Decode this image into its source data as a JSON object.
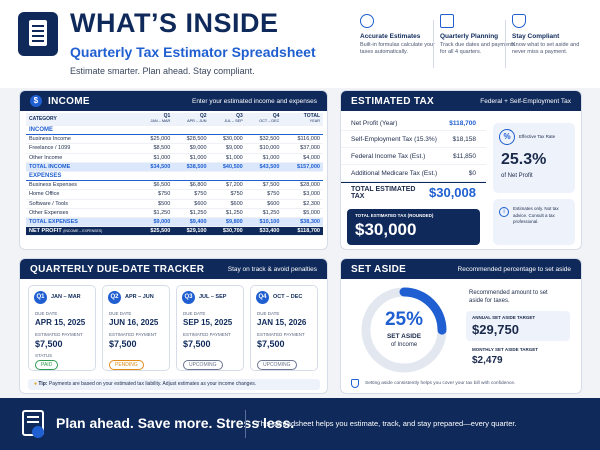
{
  "header": {
    "title": "WHAT’S INSIDE",
    "subtitle": "Quarterly Tax Estimator Spreadsheet",
    "tagline": "Estimate smarter. Plan ahead. Stay compliant.",
    "features": [
      {
        "icon": "calculator-icon",
        "title": "Accurate Estimates",
        "desc": "Built-in formulas calculate your taxes automatically."
      },
      {
        "icon": "calendar-icon",
        "title": "Quarterly Planning",
        "desc": "Track due dates and payments for all 4 quarters."
      },
      {
        "icon": "shield-check-icon",
        "title": "Stay Compliant",
        "desc": "Know what to set aside and never miss a payment."
      }
    ]
  },
  "income": {
    "title": "INCOME",
    "subtitle": "Enter your estimated income and expenses",
    "section_income": "INCOME",
    "columns": [
      {
        "main": "CATEGORY",
        "sub": ""
      },
      {
        "main": "Q1",
        "sub": "JAN – MAR"
      },
      {
        "main": "Q2",
        "sub": "APR – JUN"
      },
      {
        "main": "Q3",
        "sub": "JUL – SEP"
      },
      {
        "main": "Q4",
        "sub": "OCT – DEC"
      },
      {
        "main": "TOTAL",
        "sub": "YEAR"
      }
    ],
    "income_rows": [
      [
        "Business Income",
        "$25,000",
        "$28,500",
        "$30,000",
        "$32,500",
        "$116,000"
      ],
      [
        "Freelance / 1099",
        "$8,500",
        "$9,000",
        "$9,000",
        "$10,000",
        "$37,000"
      ],
      [
        "Other Income",
        "$1,000",
        "$1,000",
        "$1,000",
        "$1,000",
        "$4,000"
      ]
    ],
    "total_income": [
      "TOTAL INCOME",
      "$34,500",
      "$38,500",
      "$40,500",
      "$43,500",
      "$157,000"
    ],
    "section_expenses": "EXPENSES",
    "expense_rows": [
      [
        "Business Expenses",
        "$6,500",
        "$6,800",
        "$7,200",
        "$7,500",
        "$28,000"
      ],
      [
        "Home Office",
        "$750",
        "$750",
        "$750",
        "$750",
        "$3,000"
      ],
      [
        "Software / Tools",
        "$500",
        "$600",
        "$600",
        "$600",
        "$2,300"
      ],
      [
        "Other Expenses",
        "$1,250",
        "$1,250",
        "$1,250",
        "$1,250",
        "$5,000"
      ]
    ],
    "total_expenses": [
      "TOTAL EXPENSES",
      "$9,000",
      "$9,400",
      "$9,800",
      "$10,100",
      "$38,300"
    ],
    "net_profit": [
      "NET PROFIT",
      "$25,500",
      "$29,100",
      "$30,700",
      "$33,400",
      "$118,700"
    ],
    "net_profit_note": "(INCOME – EXPENSES)"
  },
  "estimated_tax": {
    "title": "ESTIMATED TAX",
    "subtitle": "Federal + Self-Employment Tax",
    "rows": [
      {
        "label": "Net Profit (Year)",
        "value": "$118,700"
      },
      {
        "label": "Self-Employment Tax (15.3%)",
        "value": "$18,158"
      },
      {
        "label": "Federal Income Tax (Est.)",
        "value": "$11,850"
      },
      {
        "label": "Additional Medicare Tax (Est.)",
        "value": "$0"
      }
    ],
    "total_label": "TOTAL ESTIMATED TAX",
    "total_value": "$30,008",
    "rounded_label": "TOTAL ESTIMATED TAX (ROUNDED)",
    "rounded_value": "$30,000",
    "rate_label": "Effective Tax Rate",
    "rate_value": "25.3%",
    "rate_sub": "of Net Profit",
    "disclaimer": "Estimates only. Not tax advice. Consult a tax professional."
  },
  "tracker": {
    "title": "QUARTERLY DUE-DATE TRACKER",
    "subtitle": "Stay on track & avoid penalties",
    "due_label": "DUE DATE",
    "payment_label": "ESTIMATED PAYMENT",
    "status_label": "STATUS",
    "quarters": [
      {
        "num": "Q1",
        "months": "JAN – MAR",
        "due": "APR 15, 2025",
        "payment": "$7,500",
        "status": "PAID"
      },
      {
        "num": "Q2",
        "months": "APR – JUN",
        "due": "JUN 16, 2025",
        "payment": "$7,500",
        "status": "PENDING"
      },
      {
        "num": "Q3",
        "months": "JUL – SEP",
        "due": "SEP 15, 2025",
        "payment": "$7,500",
        "status": "UPCOMING"
      },
      {
        "num": "Q4",
        "months": "OCT – DEC",
        "due": "JAN 15, 2026",
        "payment": "$7,500",
        "status": "UPCOMING"
      }
    ],
    "tip_label": "Tip:",
    "tip": "Payments are based on your estimated tax liability. Adjust estimates as your income changes."
  },
  "set_aside": {
    "title": "SET ASIDE",
    "subtitle": "Recommended percentage to set aside",
    "percent": "25%",
    "percent_value": 25,
    "ring_label": "SET ASIDE",
    "ring_sub": "of Income",
    "rec_text": "Recommended amount to set aside for taxes.",
    "annual_label": "ANNUAL SET ASIDE TARGET",
    "annual_value": "$29,750",
    "monthly_label": "MONTHLY SET ASIDE TARGET",
    "monthly_value": "$2,479",
    "note": "Setting aside consistently helps you cover your tax bill with confidence."
  },
  "footer": {
    "headline": "Plan ahead. Save more. Stress less.",
    "text": "This spreadsheet helps you estimate, track, and stay prepared—every quarter."
  },
  "colors": {
    "navy": "#0f2a5a",
    "blue": "#1f5fd1",
    "paid": "#2e9b4f",
    "pending": "#e08a1a",
    "upcoming": "#6b7590"
  }
}
